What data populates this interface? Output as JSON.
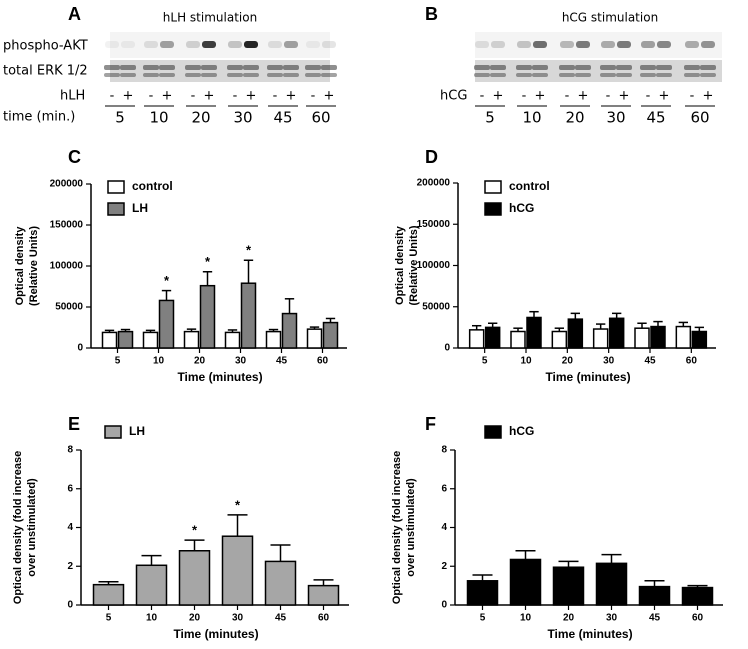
{
  "blots": [
    {
      "panel_label": "A",
      "title": "hLH stimulation",
      "rows": [
        "phospho-AKT",
        "total ERK 1/2"
      ],
      "treatment_label": "hLH",
      "time_label": "time (min.)",
      "signs": [
        "-",
        "+"
      ],
      "times": [
        "5",
        "10",
        "20",
        "30",
        "45",
        "60"
      ]
    },
    {
      "panel_label": "B",
      "title": "hCG stimulation",
      "treatment_label": "hCG",
      "signs": [
        "-",
        "+"
      ],
      "times": [
        "5",
        "10",
        "20",
        "30",
        "45",
        "60"
      ]
    }
  ],
  "chart_data": [
    {
      "type": "bar",
      "panel_label": "C",
      "xlabel": "Time (minutes)",
      "ylabel": [
        "Optical density",
        "(Relative Units)"
      ],
      "categories": [
        "5",
        "10",
        "20",
        "30",
        "45",
        "60"
      ],
      "series": [
        {
          "name": "control",
          "color": "#ffffff",
          "values": [
            19000,
            19000,
            20000,
            19000,
            20000,
            23000
          ],
          "errors": [
            2500,
            2500,
            3000,
            3000,
            2500,
            2500
          ],
          "significance": [
            null,
            null,
            null,
            null,
            null,
            null
          ]
        },
        {
          "name": "LH",
          "color": "#808080",
          "values": [
            20000,
            58000,
            76000,
            79000,
            42000,
            31000
          ],
          "errors": [
            2500,
            12000,
            17000,
            28000,
            18000,
            5000
          ],
          "significance": [
            null,
            "*",
            "*",
            "*",
            null,
            null
          ]
        }
      ],
      "ylim": [
        0,
        200000
      ],
      "yticks": [
        0,
        50000,
        100000,
        150000,
        200000
      ],
      "legend": "top-left"
    },
    {
      "type": "bar",
      "panel_label": "D",
      "xlabel": "Time (minutes)",
      "ylabel": [
        "Optical density",
        "(Relative Units)"
      ],
      "categories": [
        "5",
        "10",
        "20",
        "30",
        "45",
        "60"
      ],
      "series": [
        {
          "name": "control",
          "color": "#ffffff",
          "values": [
            22000,
            20000,
            20000,
            23000,
            24000,
            26000
          ],
          "errors": [
            5000,
            4000,
            4000,
            6000,
            6000,
            5000
          ],
          "significance": [
            null,
            null,
            null,
            null,
            null,
            null
          ]
        },
        {
          "name": "hCG",
          "color": "#000000",
          "values": [
            25000,
            37000,
            35000,
            36000,
            26000,
            20000
          ],
          "errors": [
            5000,
            7000,
            7000,
            6000,
            6000,
            5000
          ],
          "significance": [
            null,
            null,
            null,
            null,
            null,
            null
          ]
        }
      ],
      "ylim": [
        0,
        200000
      ],
      "yticks": [
        0,
        50000,
        100000,
        150000,
        200000
      ],
      "legend": "top-left"
    },
    {
      "type": "bar",
      "panel_label": "E",
      "xlabel": "Time (minutes)",
      "ylabel": [
        "Optical density (fold increase",
        "over unstimulated)"
      ],
      "categories": [
        "5",
        "10",
        "20",
        "30",
        "45",
        "60"
      ],
      "series": [
        {
          "name": "LH",
          "color": "#a6a6a6",
          "values": [
            1.05,
            2.05,
            2.8,
            3.55,
            2.25,
            1.0
          ],
          "errors": [
            0.15,
            0.5,
            0.55,
            1.1,
            0.85,
            0.3
          ],
          "significance": [
            null,
            null,
            "*",
            "*",
            null,
            null
          ]
        }
      ],
      "ylim": [
        0,
        8
      ],
      "yticks": [
        0,
        2,
        4,
        6,
        8
      ],
      "legend": "top-left"
    },
    {
      "type": "bar",
      "panel_label": "F",
      "xlabel": "Time (minutes)",
      "ylabel": [
        "Optical density (fold increase",
        "over unstimulated)"
      ],
      "categories": [
        "5",
        "10",
        "20",
        "30",
        "45",
        "60"
      ],
      "series": [
        {
          "name": "hCG",
          "color": "#000000",
          "values": [
            1.25,
            2.35,
            1.95,
            2.15,
            0.95,
            0.9
          ],
          "errors": [
            0.3,
            0.45,
            0.3,
            0.45,
            0.3,
            0.1
          ],
          "significance": [
            null,
            null,
            null,
            null,
            null,
            null
          ]
        }
      ],
      "ylim": [
        0,
        8
      ],
      "yticks": [
        0,
        2,
        4,
        6,
        8
      ],
      "legend": "top-left"
    }
  ]
}
